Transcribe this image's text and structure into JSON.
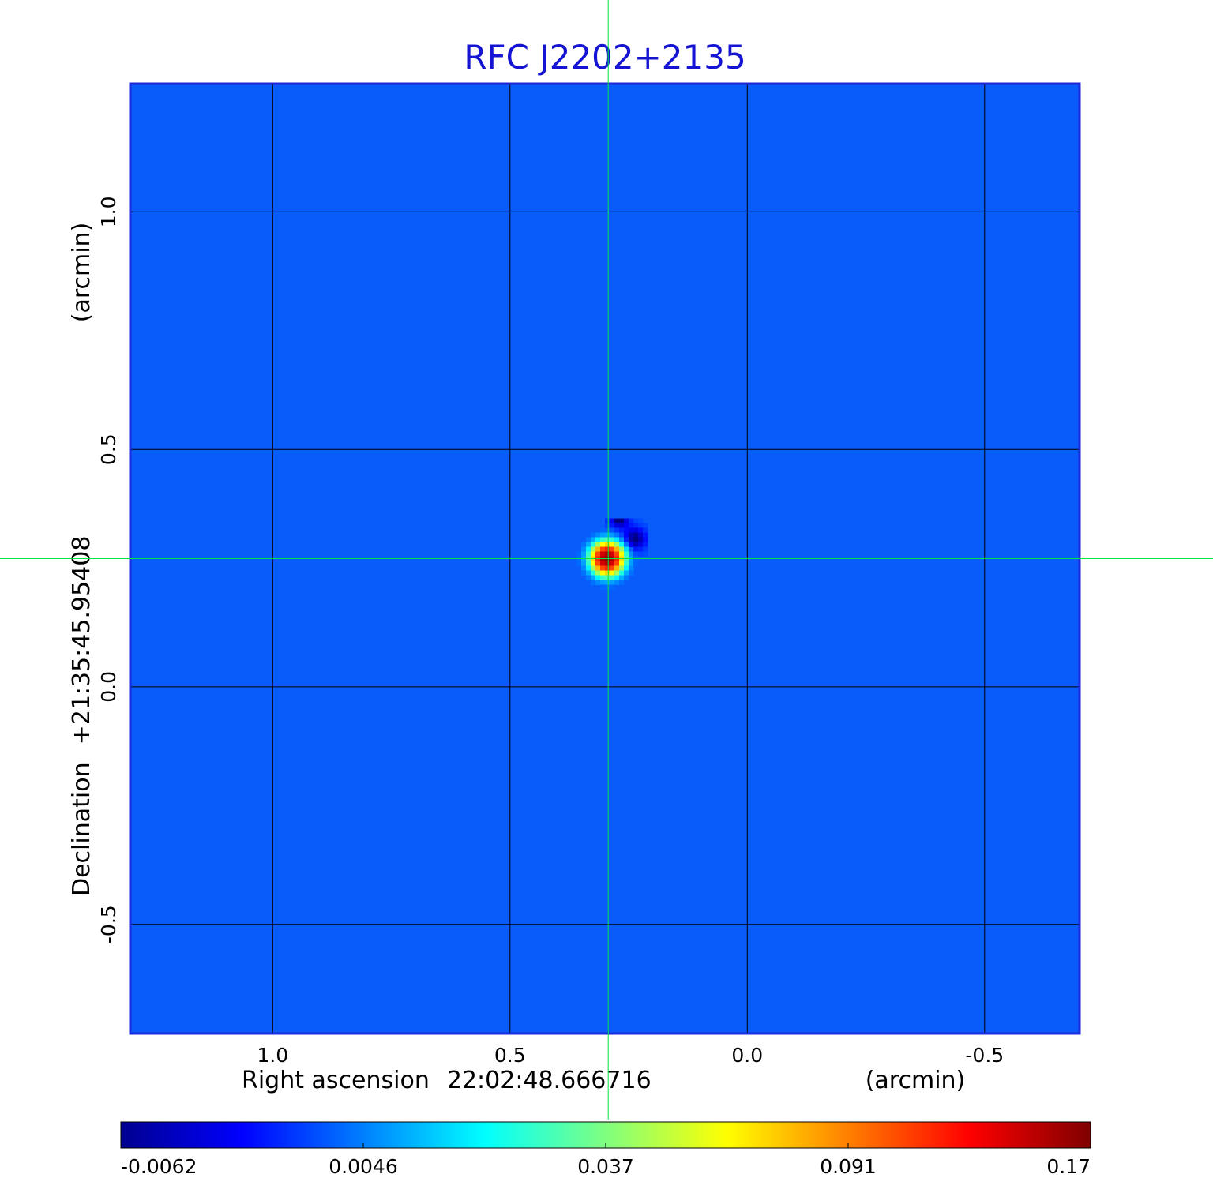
{
  "chart_data": {
    "type": "heatmap",
    "title": "RFC J2202+2135",
    "xlabel": {
      "prefix": "Right ascension",
      "center": "22:02:48.666716",
      "unit": "(arcmin)"
    },
    "ylabel": {
      "prefix": "Declination",
      "center": "+21:35:45.95408",
      "unit": "(arcmin)"
    },
    "x_ticks": [
      {
        "value": 1.0,
        "label": "1.0"
      },
      {
        "value": 0.5,
        "label": "0.5"
      },
      {
        "value": 0.0,
        "label": "0.0"
      },
      {
        "value": -0.5,
        "label": "-0.5"
      }
    ],
    "y_ticks": [
      {
        "value": 1.0,
        "label": "1.0"
      },
      {
        "value": 0.5,
        "label": "0.5"
      },
      {
        "value": 0.0,
        "label": "0.0"
      },
      {
        "value": -0.5,
        "label": "-0.5"
      }
    ],
    "xlim": [
      1.3,
      -0.7
    ],
    "ylim": [
      -0.73,
      1.27
    ],
    "grid": true,
    "crosshair": {
      "x": 0.293,
      "y": 0.27
    },
    "source": {
      "x": 0.295,
      "y": 0.27,
      "peak": 0.17,
      "sigma_arcmin": 0.018
    },
    "background_value": -0.0005,
    "colorbar": {
      "labels": [
        "-0.0062",
        "0.0046",
        "0.037",
        "0.091",
        "0.17"
      ],
      "min": -0.0062,
      "max": 0.17,
      "colormap": "jet"
    },
    "colors": {
      "title": "#1414d2",
      "frame": "#1e28dc",
      "crosshair": "#00e640",
      "grid": "#000000"
    }
  }
}
